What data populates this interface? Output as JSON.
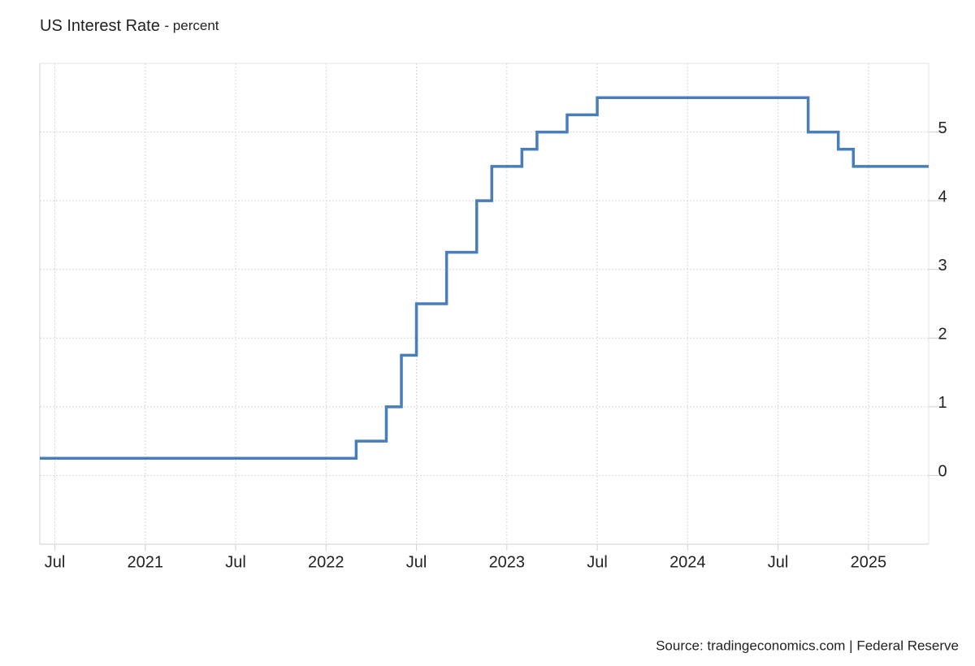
{
  "chart_data": {
    "type": "line",
    "step": "after",
    "title": "US Interest Rate",
    "subtitle": "- percent",
    "source": "Source: tradingeconomics.com | Federal Reserve",
    "x": [
      "2020-06",
      "2022-03",
      "2022-05",
      "2022-06",
      "2022-07",
      "2022-09",
      "2022-11",
      "2022-12",
      "2023-02",
      "2023-03",
      "2023-05",
      "2023-07",
      "2024-09",
      "2024-11",
      "2024-12",
      "2025-05"
    ],
    "values": [
      0.25,
      0.5,
      1.0,
      1.75,
      2.5,
      3.25,
      4.0,
      4.5,
      4.75,
      5.0,
      5.25,
      5.5,
      5.0,
      4.75,
      4.5,
      4.5
    ],
    "color": "#4a7ebb",
    "xlim": [
      "2020-06",
      "2025-05"
    ],
    "xticks": [
      {
        "value": "2020-07",
        "label": "Jul"
      },
      {
        "value": "2021-01",
        "label": "2021"
      },
      {
        "value": "2021-07",
        "label": "Jul"
      },
      {
        "value": "2022-01",
        "label": "2022"
      },
      {
        "value": "2022-07",
        "label": "Jul"
      },
      {
        "value": "2023-01",
        "label": "2023"
      },
      {
        "value": "2023-07",
        "label": "Jul"
      },
      {
        "value": "2024-01",
        "label": "2024"
      },
      {
        "value": "2024-07",
        "label": "Jul"
      },
      {
        "value": "2025-01",
        "label": "2025"
      }
    ],
    "ylim": [
      -1,
      6
    ],
    "yticks": [
      0,
      1,
      2,
      3,
      4,
      5
    ],
    "grid": true
  }
}
